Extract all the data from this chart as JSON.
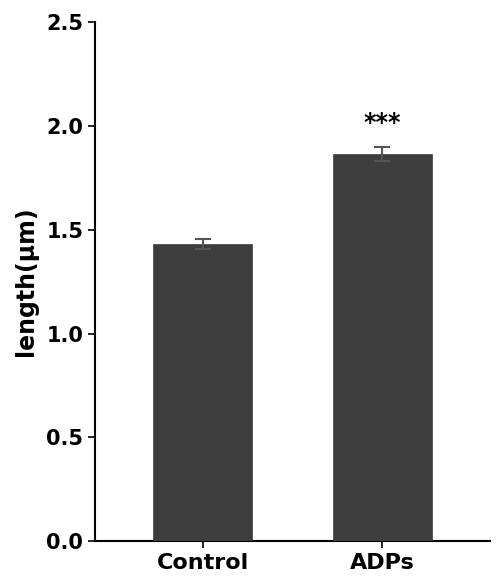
{
  "categories": [
    "Control",
    "ADPs"
  ],
  "values": [
    1.43,
    1.865
  ],
  "errors": [
    0.025,
    0.035
  ],
  "bar_color": "#3d3d3d",
  "bar_width": 0.55,
  "ylabel": "length(μm)",
  "ylim": [
    0,
    2.5
  ],
  "yticks": [
    0.0,
    0.5,
    1.0,
    1.5,
    2.0,
    2.5
  ],
  "significance": "***",
  "sig_bar_index": 1,
  "background_color": "#ffffff",
  "ylabel_fontsize": 17,
  "tick_fontsize": 15,
  "xtick_fontsize": 16,
  "sig_fontsize": 17,
  "error_capsize": 6,
  "error_linewidth": 1.5,
  "bar_edge_color": "#3d3d3d",
  "xlim": [
    -0.6,
    1.6
  ]
}
